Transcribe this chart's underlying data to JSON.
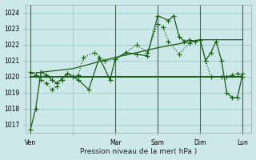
{
  "bg_color": "#cde8e8",
  "grid_color": "#a8cccc",
  "line_color": "#1a5c1a",
  "xlabel": "Pression niveau de la mer( hPa )",
  "ylim": [
    1016.5,
    1024.5
  ],
  "yticks": [
    1017,
    1018,
    1019,
    1020,
    1021,
    1022,
    1023,
    1024
  ],
  "xlim": [
    -5,
    250
  ],
  "xtick_positions": [
    0,
    48,
    96,
    144,
    192,
    240
  ],
  "xtick_labels": [
    "Ven",
    "",
    "Mar",
    "Sam",
    "Dim",
    "Lun"
  ],
  "vline_positions": [
    0,
    96,
    144,
    192,
    240
  ],
  "series": [
    {
      "x": [
        0,
        192,
        240
      ],
      "y": [
        1020.0,
        1020.0,
        1020.0
      ],
      "linestyle": "-",
      "linewidth": 1.4,
      "marker": "None",
      "markersize": 0,
      "zorder": 2
    },
    {
      "x": [
        0,
        48,
        96,
        144,
        192,
        240
      ],
      "y": [
        1020.2,
        1020.5,
        1021.2,
        1021.8,
        1022.3,
        1022.3
      ],
      "linestyle": "-",
      "linewidth": 0.9,
      "marker": "None",
      "markersize": 0,
      "zorder": 2
    },
    {
      "x": [
        0,
        6,
        12,
        18,
        24,
        30,
        36,
        42,
        48,
        54,
        60,
        72,
        84,
        96,
        108,
        120,
        132,
        144,
        150,
        156,
        168,
        180,
        192,
        198,
        204,
        216,
        222,
        228,
        234,
        240
      ],
      "y": [
        1020.3,
        1020.1,
        1019.8,
        1019.6,
        1019.2,
        1019.4,
        1019.8,
        1020.2,
        1020.0,
        1020.1,
        1021.2,
        1021.5,
        1021.0,
        1021.1,
        1021.5,
        1022.0,
        1021.5,
        1023.3,
        1023.1,
        1022.2,
        1021.4,
        1022.1,
        1022.3,
        1021.0,
        1020.0,
        1020.0,
        1020.0,
        1020.1,
        1020.2,
        1020.0
      ],
      "linestyle": ":",
      "linewidth": 0.9,
      "marker": "+",
      "markersize": 4,
      "zorder": 3
    },
    {
      "x": [
        0,
        6,
        12,
        18,
        24,
        30,
        42,
        54,
        66,
        78,
        90,
        96,
        108,
        120,
        132,
        144,
        156,
        162,
        168,
        174,
        180,
        186,
        192,
        198,
        204,
        210,
        216,
        222,
        228,
        234,
        240
      ],
      "y": [
        1016.7,
        1018.0,
        1020.3,
        1020.1,
        1019.8,
        1019.6,
        1020.2,
        1019.8,
        1019.2,
        1021.2,
        1019.8,
        1021.1,
        1021.5,
        1021.4,
        1021.3,
        1023.8,
        1023.5,
        1023.8,
        1022.5,
        1022.2,
        1022.3,
        1022.2,
        1022.3,
        1021.0,
        1021.5,
        1022.2,
        1021.0,
        1019.0,
        1018.7,
        1018.7,
        1020.2
      ],
      "linestyle": "-",
      "linewidth": 0.9,
      "marker": "+",
      "markersize": 4,
      "zorder": 3
    }
  ]
}
